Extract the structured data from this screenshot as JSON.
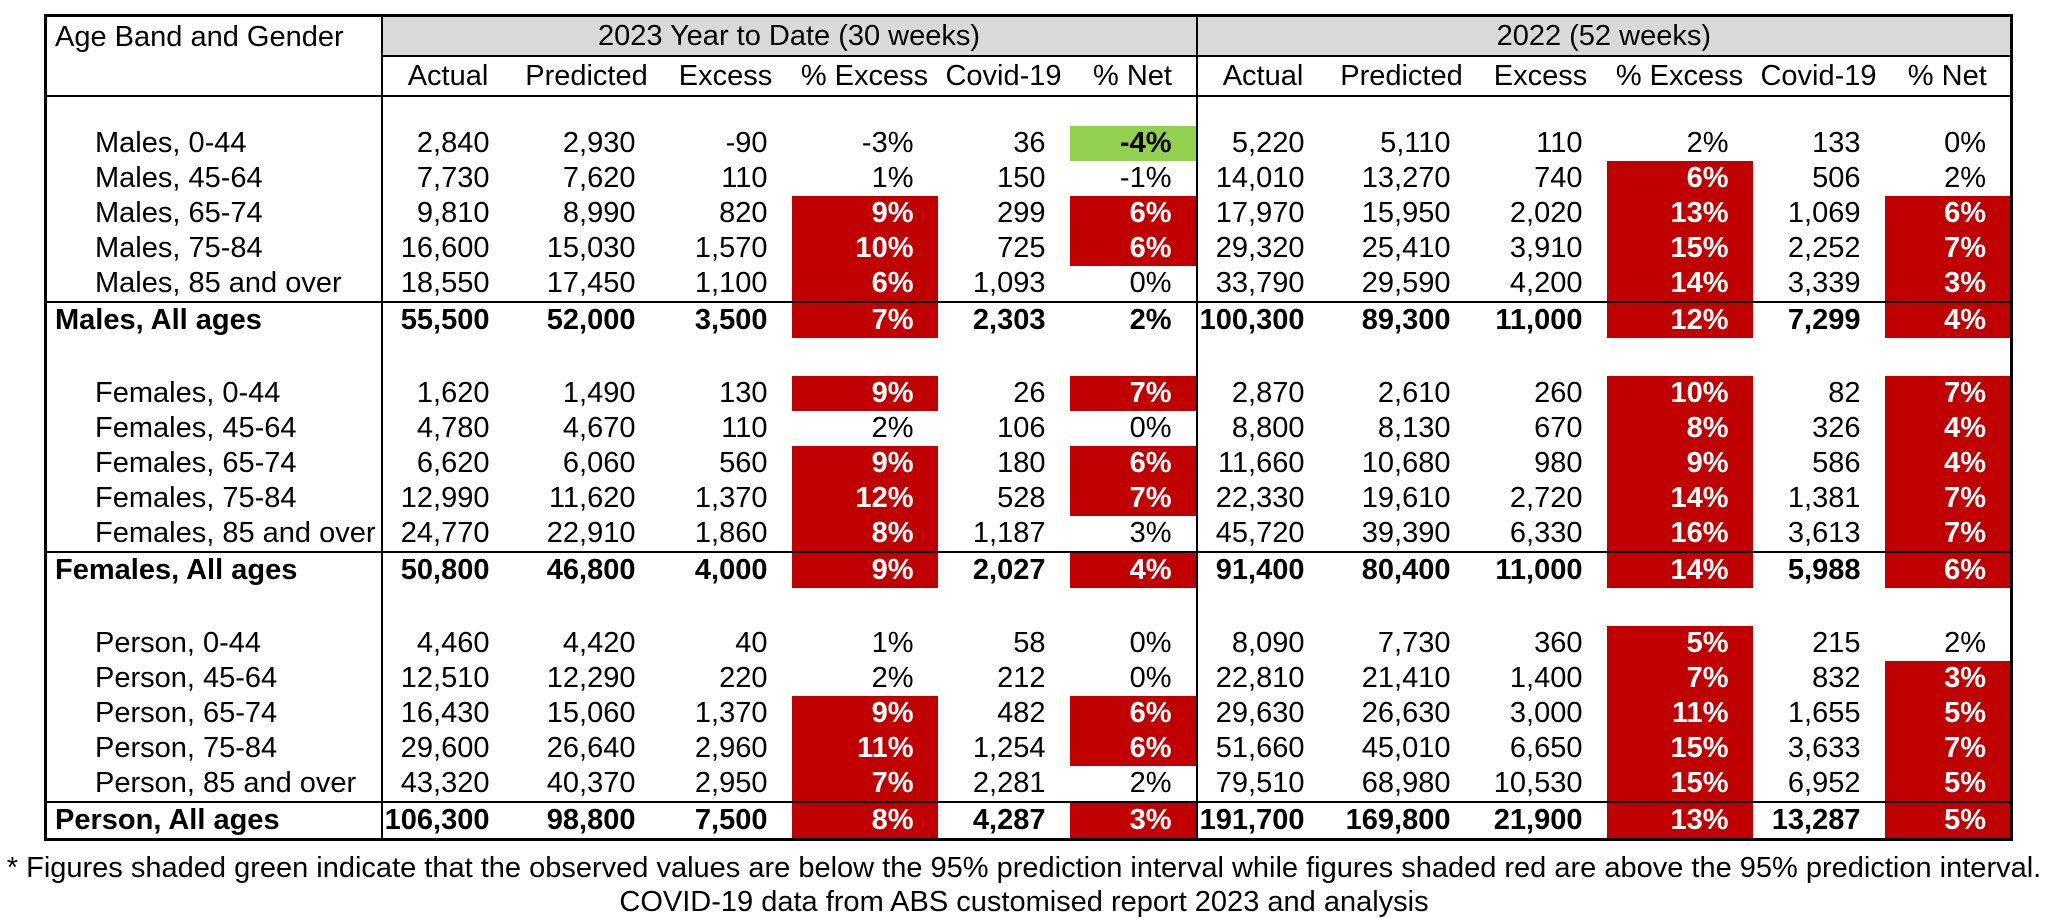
{
  "colors": {
    "shade_red": "#C00000",
    "shade_green": "#92D050",
    "header_band_gray": "#D9D9D9"
  },
  "footnotes": {
    "line1": "* Figures shaded green indicate that the observed values are below the 95% prediction interval while figures shaded red are above the 95% prediction interval.",
    "line2": "COVID-19 data from ABS customised report 2023 and analysis"
  },
  "chart_data": {
    "type": "table",
    "corner_label": "Age Band and Gender",
    "column_groups": [
      "2023 Year to Date (30 weeks)",
      "2022 (52 weeks)"
    ],
    "sub_columns": [
      "Actual",
      "Predicted",
      "Excess",
      "% Excess",
      "Covid-19",
      "% Net"
    ],
    "shading_legend": {
      "green": "observed values below the 95% prediction interval",
      "red": "observed values above the 95% prediction interval"
    },
    "sections": [
      {
        "name": "Males",
        "rows": [
          {
            "label": "Males, 0-44",
            "total": false,
            "values": [
              "2,840",
              "2,930",
              "-90",
              "-3%",
              "36",
              "-4%",
              "5,220",
              "5,110",
              "110",
              "2%",
              "133",
              "0%"
            ],
            "shades": [
              "",
              "",
              "",
              "",
              "",
              "green",
              "",
              "",
              "",
              "",
              "",
              ""
            ]
          },
          {
            "label": "Males, 45-64",
            "total": false,
            "values": [
              "7,730",
              "7,620",
              "110",
              "1%",
              "150",
              "-1%",
              "14,010",
              "13,270",
              "740",
              "6%",
              "506",
              "2%"
            ],
            "shades": [
              "",
              "",
              "",
              "",
              "",
              "",
              "",
              "",
              "",
              "red",
              "",
              ""
            ]
          },
          {
            "label": "Males, 65-74",
            "total": false,
            "values": [
              "9,810",
              "8,990",
              "820",
              "9%",
              "299",
              "6%",
              "17,970",
              "15,950",
              "2,020",
              "13%",
              "1,069",
              "6%"
            ],
            "shades": [
              "",
              "",
              "",
              "red",
              "",
              "red",
              "",
              "",
              "",
              "red",
              "",
              "red"
            ]
          },
          {
            "label": "Males, 75-84",
            "total": false,
            "values": [
              "16,600",
              "15,030",
              "1,570",
              "10%",
              "725",
              "6%",
              "29,320",
              "25,410",
              "3,910",
              "15%",
              "2,252",
              "7%"
            ],
            "shades": [
              "",
              "",
              "",
              "red",
              "",
              "red",
              "",
              "",
              "",
              "red",
              "",
              "red"
            ]
          },
          {
            "label": "Males, 85 and over",
            "total": false,
            "values": [
              "18,550",
              "17,450",
              "1,100",
              "6%",
              "1,093",
              "0%",
              "33,790",
              "29,590",
              "4,200",
              "14%",
              "3,339",
              "3%"
            ],
            "shades": [
              "",
              "",
              "",
              "red",
              "",
              "",
              "",
              "",
              "",
              "red",
              "",
              "red"
            ]
          },
          {
            "label": "Males, All ages",
            "total": true,
            "values": [
              "55,500",
              "52,000",
              "3,500",
              "7%",
              "2,303",
              "2%",
              "100,300",
              "89,300",
              "11,000",
              "12%",
              "7,299",
              "4%"
            ],
            "shades": [
              "",
              "",
              "",
              "red",
              "",
              "",
              "",
              "",
              "",
              "red",
              "",
              "red"
            ]
          }
        ]
      },
      {
        "name": "Females",
        "rows": [
          {
            "label": "Females, 0-44",
            "total": false,
            "values": [
              "1,620",
              "1,490",
              "130",
              "9%",
              "26",
              "7%",
              "2,870",
              "2,610",
              "260",
              "10%",
              "82",
              "7%"
            ],
            "shades": [
              "",
              "",
              "",
              "red",
              "",
              "red",
              "",
              "",
              "",
              "red",
              "",
              "red"
            ]
          },
          {
            "label": "Females, 45-64",
            "total": false,
            "values": [
              "4,780",
              "4,670",
              "110",
              "2%",
              "106",
              "0%",
              "8,800",
              "8,130",
              "670",
              "8%",
              "326",
              "4%"
            ],
            "shades": [
              "",
              "",
              "",
              "",
              "",
              "",
              "",
              "",
              "",
              "red",
              "",
              "red"
            ]
          },
          {
            "label": "Females, 65-74",
            "total": false,
            "values": [
              "6,620",
              "6,060",
              "560",
              "9%",
              "180",
              "6%",
              "11,660",
              "10,680",
              "980",
              "9%",
              "586",
              "4%"
            ],
            "shades": [
              "",
              "",
              "",
              "red",
              "",
              "red",
              "",
              "",
              "",
              "red",
              "",
              "red"
            ]
          },
          {
            "label": "Females, 75-84",
            "total": false,
            "values": [
              "12,990",
              "11,620",
              "1,370",
              "12%",
              "528",
              "7%",
              "22,330",
              "19,610",
              "2,720",
              "14%",
              "1,381",
              "7%"
            ],
            "shades": [
              "",
              "",
              "",
              "red",
              "",
              "red",
              "",
              "",
              "",
              "red",
              "",
              "red"
            ]
          },
          {
            "label": "Females, 85 and over",
            "total": false,
            "values": [
              "24,770",
              "22,910",
              "1,860",
              "8%",
              "1,187",
              "3%",
              "45,720",
              "39,390",
              "6,330",
              "16%",
              "3,613",
              "7%"
            ],
            "shades": [
              "",
              "",
              "",
              "red",
              "",
              "",
              "",
              "",
              "",
              "red",
              "",
              "red"
            ]
          },
          {
            "label": "Females, All ages",
            "total": true,
            "values": [
              "50,800",
              "46,800",
              "4,000",
              "9%",
              "2,027",
              "4%",
              "91,400",
              "80,400",
              "11,000",
              "14%",
              "5,988",
              "6%"
            ],
            "shades": [
              "",
              "",
              "",
              "red",
              "",
              "red",
              "",
              "",
              "",
              "red",
              "",
              "red"
            ]
          }
        ]
      },
      {
        "name": "Person",
        "rows": [
          {
            "label": "Person, 0-44",
            "total": false,
            "values": [
              "4,460",
              "4,420",
              "40",
              "1%",
              "58",
              "0%",
              "8,090",
              "7,730",
              "360",
              "5%",
              "215",
              "2%"
            ],
            "shades": [
              "",
              "",
              "",
              "",
              "",
              "",
              "",
              "",
              "",
              "red",
              "",
              ""
            ]
          },
          {
            "label": "Person, 45-64",
            "total": false,
            "values": [
              "12,510",
              "12,290",
              "220",
              "2%",
              "212",
              "0%",
              "22,810",
              "21,410",
              "1,400",
              "7%",
              "832",
              "3%"
            ],
            "shades": [
              "",
              "",
              "",
              "",
              "",
              "",
              "",
              "",
              "",
              "red",
              "",
              "red"
            ]
          },
          {
            "label": "Person, 65-74",
            "total": false,
            "values": [
              "16,430",
              "15,060",
              "1,370",
              "9%",
              "482",
              "6%",
              "29,630",
              "26,630",
              "3,000",
              "11%",
              "1,655",
              "5%"
            ],
            "shades": [
              "",
              "",
              "",
              "red",
              "",
              "red",
              "",
              "",
              "",
              "red",
              "",
              "red"
            ]
          },
          {
            "label": "Person, 75-84",
            "total": false,
            "values": [
              "29,600",
              "26,640",
              "2,960",
              "11%",
              "1,254",
              "6%",
              "51,660",
              "45,010",
              "6,650",
              "15%",
              "3,633",
              "7%"
            ],
            "shades": [
              "",
              "",
              "",
              "red",
              "",
              "red",
              "",
              "",
              "",
              "red",
              "",
              "red"
            ]
          },
          {
            "label": "Person, 85 and over",
            "total": false,
            "values": [
              "43,320",
              "40,370",
              "2,950",
              "7%",
              "2,281",
              "2%",
              "79,510",
              "68,980",
              "10,530",
              "15%",
              "6,952",
              "5%"
            ],
            "shades": [
              "",
              "",
              "",
              "red",
              "",
              "",
              "",
              "",
              "",
              "red",
              "",
              "red"
            ]
          },
          {
            "label": "Person, All ages",
            "total": true,
            "values": [
              "106,300",
              "98,800",
              "7,500",
              "8%",
              "4,287",
              "3%",
              "191,700",
              "169,800",
              "21,900",
              "13%",
              "13,287",
              "5%"
            ],
            "shades": [
              "",
              "",
              "",
              "red",
              "",
              "red",
              "",
              "",
              "",
              "red",
              "",
              "red"
            ]
          }
        ]
      }
    ]
  }
}
